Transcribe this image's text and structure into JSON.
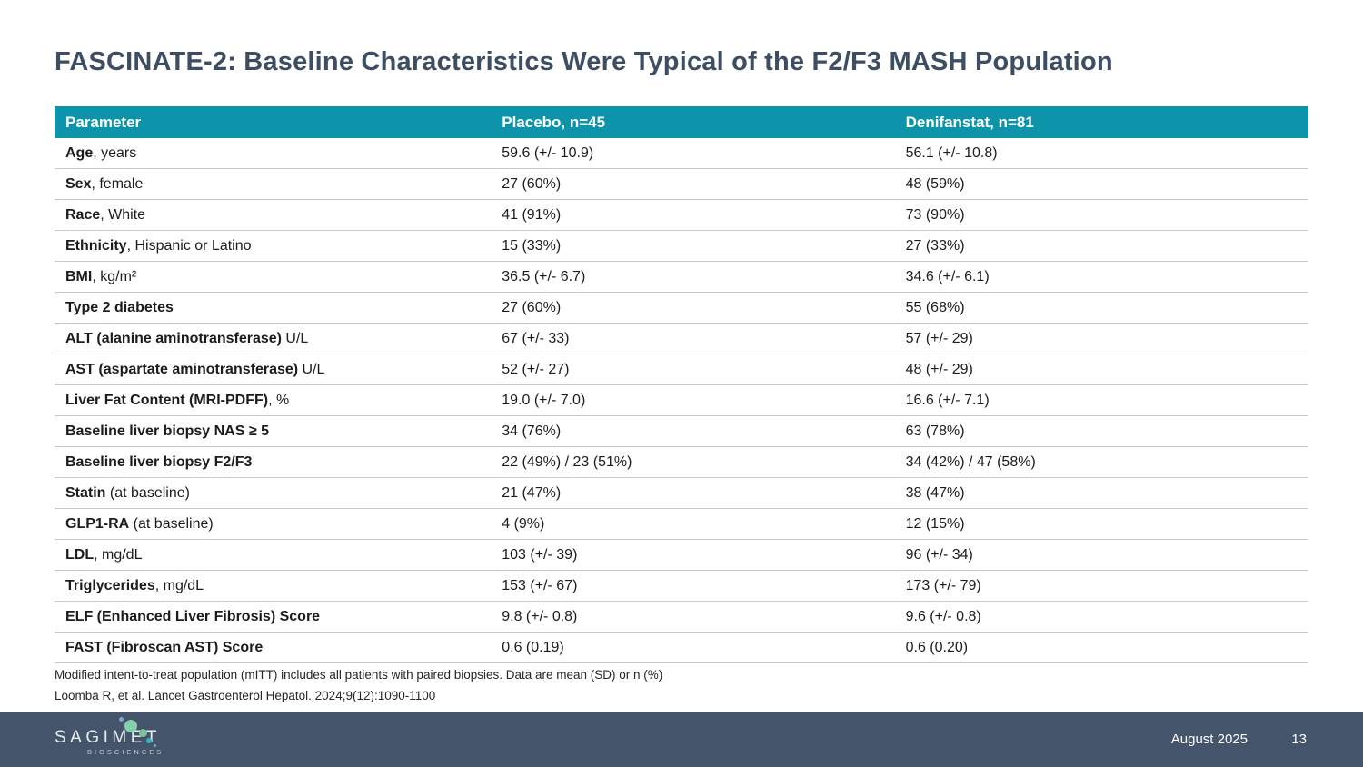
{
  "slide": {
    "title": "FASCINATE-2: Baseline Characteristics Were Typical of the F2/F3 MASH Population",
    "footnote1": "Modified intent-to-treat population (mITT) includes all patients with paired biopsies. Data are mean (SD) or n (%)",
    "footnote2": "Loomba R, et al. Lancet Gastroenterol Hepatol. 2024;9(12):1090-1100"
  },
  "table": {
    "headers": [
      "Parameter",
      "Placebo, n=45",
      "Denifanstat, n=81"
    ],
    "rows": [
      {
        "param_bold": "Age",
        "param_rest": ", years",
        "placebo": "59.6 (+/- 10.9)",
        "denifanstat": "56.1 (+/- 10.8)"
      },
      {
        "param_bold": "Sex",
        "param_rest": ", female",
        "placebo": "27 (60%)",
        "denifanstat": "48 (59%)"
      },
      {
        "param_bold": "Race",
        "param_rest": ", White",
        "placebo": "41 (91%)",
        "denifanstat": "73 (90%)"
      },
      {
        "param_bold": "Ethnicity",
        "param_rest": ", Hispanic or Latino",
        "placebo": "15 (33%)",
        "denifanstat": "27 (33%)"
      },
      {
        "param_bold": "BMI",
        "param_rest": ", kg/m²",
        "placebo": "36.5 (+/- 6.7)",
        "denifanstat": "34.6 (+/- 6.1)"
      },
      {
        "param_bold": "Type 2 diabetes",
        "param_rest": "",
        "placebo": "27 (60%)",
        "denifanstat": "55 (68%)"
      },
      {
        "param_bold": "ALT (alanine aminotransferase)",
        "param_rest": " U/L",
        "placebo": "67 (+/- 33)",
        "denifanstat": "57 (+/- 29)"
      },
      {
        "param_bold": "AST (aspartate aminotransferase)",
        "param_rest": " U/L",
        "placebo": "52 (+/- 27)",
        "denifanstat": "48 (+/- 29)"
      },
      {
        "param_bold": "Liver Fat Content (MRI-PDFF)",
        "param_rest": ", %",
        "placebo": "19.0 (+/- 7.0)",
        "denifanstat": "16.6 (+/- 7.1)"
      },
      {
        "param_bold": "Baseline liver biopsy NAS ≥ 5",
        "param_rest": "",
        "placebo": "34 (76%)",
        "denifanstat": "63 (78%)"
      },
      {
        "param_bold": "Baseline liver biopsy F2/F3",
        "param_rest": "",
        "placebo": "22 (49%) / 23 (51%)",
        "denifanstat": "34 (42%) / 47 (58%)"
      },
      {
        "param_bold": "Statin",
        "param_rest": " (at baseline)",
        "placebo": "21 (47%)",
        "denifanstat": "38 (47%)"
      },
      {
        "param_bold": "GLP1-RA",
        "param_rest": " (at baseline)",
        "placebo": "4 (9%)",
        "denifanstat": "12 (15%)"
      },
      {
        "param_bold": "LDL",
        "param_rest": ", mg/dL",
        "placebo": "103 (+/- 39)",
        "denifanstat": "96 (+/- 34)"
      },
      {
        "param_bold": "Triglycerides",
        "param_rest": ", mg/dL",
        "placebo": "153 (+/- 67)",
        "denifanstat": "173 (+/- 79)"
      },
      {
        "param_bold": "ELF (Enhanced Liver Fibrosis) Score",
        "param_rest": "",
        "placebo": "9.8 (+/- 0.8)",
        "denifanstat": "9.6 (+/- 0.8)"
      },
      {
        "param_bold": "FAST (Fibroscan AST) Score",
        "param_rest": "",
        "placebo": "0.6 (0.19)",
        "denifanstat": "0.6 (0.20)"
      }
    ]
  },
  "footer": {
    "logo_text": "SAGIMET",
    "logo_subtext": "BIOSCIENCES",
    "date": "August 2025",
    "page_number": "13"
  },
  "colors": {
    "header_teal": "#0E94AA",
    "title_navy": "#3D4E63",
    "footer_slate": "#44546A",
    "logo_mint": "#88CFAC",
    "logo_green": "#7FC39B",
    "logo_teal": "#2FB4BF",
    "logo_blue": "#7FA8CC"
  }
}
